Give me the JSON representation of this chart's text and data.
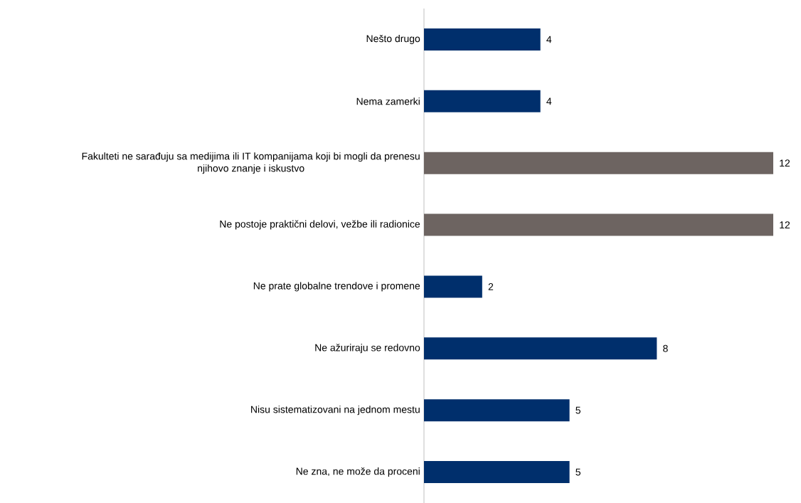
{
  "chart_data": {
    "type": "bar",
    "orientation": "horizontal",
    "categories": [
      "Nešto drugo",
      "Nema zamerki",
      "Fakulteti ne sarađuju sa medijima ili IT kompanijama koji bi mogli da prenesu njihovo znanje i iskustvo",
      "Ne postoje praktični delovi, vežbe ili radionice",
      "Ne prate globalne trendove i promene",
      "Ne ažuriraju se redovno",
      "Nisu sistematizovani na jednom mestu",
      "Ne zna, ne može da proceni"
    ],
    "values": [
      4,
      4,
      12,
      12,
      2,
      8,
      5,
      5
    ],
    "colors": [
      "#002f6c",
      "#002f6c",
      "#6d6461",
      "#6d6461",
      "#002f6c",
      "#002f6c",
      "#002f6c",
      "#002f6c"
    ],
    "data_labels": true
  }
}
